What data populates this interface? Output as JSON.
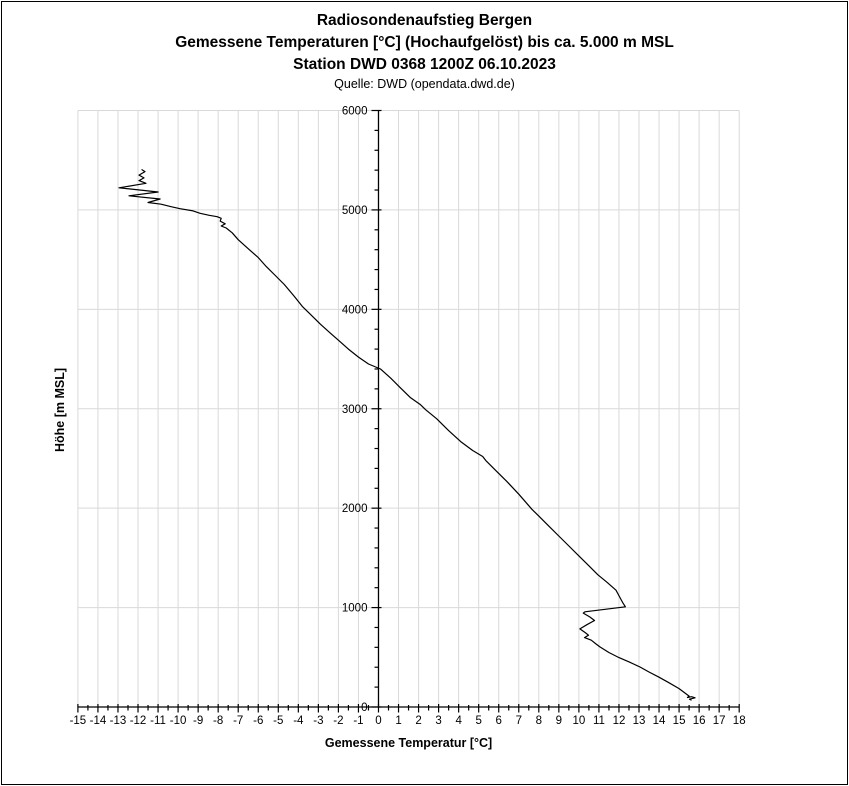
{
  "header": {
    "title": "Radiosondenaufstieg Bergen",
    "subtitle": "Gemessene Temperaturen [°C] (Hochaufgelöst) bis ca. 5.000 m MSL",
    "station_line": "Station DWD 0368 1200Z 06.10.2023",
    "source_line": "Quelle: DWD (opendata.dwd.de)"
  },
  "chart_data": {
    "type": "line",
    "title": "Radiosondenaufstieg Bergen — Gemessene Temperaturen",
    "xlabel": "Gemessene Temperatur [°C]",
    "ylabel": "Höhe [m MSL]",
    "xlim": [
      -15,
      18
    ],
    "ylim": [
      0,
      6000
    ],
    "x_major_step": 1,
    "x_minor_step": 0.5,
    "y_major_step": 1000,
    "y_minor_step": 200,
    "x_ticks": [
      -15,
      -14,
      -13,
      -12,
      -11,
      -10,
      -9,
      -8,
      -7,
      -6,
      -5,
      -4,
      -3,
      -2,
      -1,
      0,
      1,
      2,
      3,
      4,
      5,
      6,
      7,
      8,
      9,
      10,
      11,
      12,
      13,
      14,
      15,
      16,
      17,
      18
    ],
    "y_ticks": [
      0,
      1000,
      2000,
      3000,
      4000,
      5000,
      6000
    ],
    "grid": "major-both",
    "legend": "none",
    "colors": {
      "line": "#000000",
      "grid": "#d9d9d9",
      "axis": "#000000",
      "background": "#ffffff"
    },
    "series": [
      {
        "name": "Gemessene Temperatur [°C]",
        "note": "points are [temperature_C, altitude_m_MSL], ordered top of ascent to surface",
        "points": [
          [
            -11.8,
            5405
          ],
          [
            -11.65,
            5385
          ],
          [
            -11.95,
            5350
          ],
          [
            -11.7,
            5322
          ],
          [
            -11.95,
            5295
          ],
          [
            -11.6,
            5268
          ],
          [
            -12.95,
            5222
          ],
          [
            -11.0,
            5180
          ],
          [
            -12.45,
            5142
          ],
          [
            -10.9,
            5110
          ],
          [
            -11.5,
            5075
          ],
          [
            -10.85,
            5058
          ],
          [
            -10.35,
            5032
          ],
          [
            -9.9,
            5012
          ],
          [
            -9.25,
            4990
          ],
          [
            -8.9,
            4966
          ],
          [
            -8.45,
            4946
          ],
          [
            -8.05,
            4932
          ],
          [
            -7.85,
            4916
          ],
          [
            -7.9,
            4888
          ],
          [
            -7.65,
            4860
          ],
          [
            -7.85,
            4838
          ],
          [
            -7.6,
            4818
          ],
          [
            -7.3,
            4770
          ],
          [
            -7.0,
            4700
          ],
          [
            -6.5,
            4610
          ],
          [
            -6.0,
            4520
          ],
          [
            -5.6,
            4430
          ],
          [
            -5.2,
            4350
          ],
          [
            -4.7,
            4250
          ],
          [
            -4.2,
            4130
          ],
          [
            -3.8,
            4030
          ],
          [
            -3.4,
            3950
          ],
          [
            -2.9,
            3850
          ],
          [
            -2.4,
            3760
          ],
          [
            -2.0,
            3690
          ],
          [
            -1.5,
            3600
          ],
          [
            -1.0,
            3520
          ],
          [
            -0.5,
            3450
          ],
          [
            0.1,
            3400
          ],
          [
            0.6,
            3310
          ],
          [
            1.05,
            3220
          ],
          [
            1.6,
            3110
          ],
          [
            2.1,
            3040
          ],
          [
            2.35,
            2990
          ],
          [
            2.9,
            2900
          ],
          [
            3.5,
            2780
          ],
          [
            4.1,
            2670
          ],
          [
            4.7,
            2580
          ],
          [
            5.2,
            2520
          ],
          [
            5.35,
            2480
          ],
          [
            5.9,
            2370
          ],
          [
            6.4,
            2270
          ],
          [
            7.0,
            2140
          ],
          [
            7.65,
            1990
          ],
          [
            8.0,
            1920
          ],
          [
            8.5,
            1820
          ],
          [
            9.0,
            1720
          ],
          [
            9.45,
            1630
          ],
          [
            10.0,
            1520
          ],
          [
            10.5,
            1420
          ],
          [
            10.95,
            1330
          ],
          [
            11.4,
            1255
          ],
          [
            11.85,
            1175
          ],
          [
            12.05,
            1100
          ],
          [
            12.2,
            1045
          ],
          [
            12.32,
            1008
          ],
          [
            10.3,
            958
          ],
          [
            10.22,
            945
          ],
          [
            10.55,
            905
          ],
          [
            10.78,
            870
          ],
          [
            10.4,
            828
          ],
          [
            10.05,
            786
          ],
          [
            10.3,
            750
          ],
          [
            10.48,
            722
          ],
          [
            10.28,
            698
          ],
          [
            10.62,
            672
          ],
          [
            10.85,
            635
          ],
          [
            11.05,
            605
          ],
          [
            11.5,
            548
          ],
          [
            12.0,
            497
          ],
          [
            12.52,
            452
          ],
          [
            13.05,
            402
          ],
          [
            13.5,
            352
          ],
          [
            14.0,
            300
          ],
          [
            14.5,
            243
          ],
          [
            15.0,
            185
          ],
          [
            15.3,
            140
          ],
          [
            15.5,
            110
          ],
          [
            15.42,
            96
          ],
          [
            15.62,
            104
          ],
          [
            15.8,
            93
          ],
          [
            15.52,
            78
          ],
          [
            15.6,
            70
          ]
        ]
      }
    ]
  }
}
